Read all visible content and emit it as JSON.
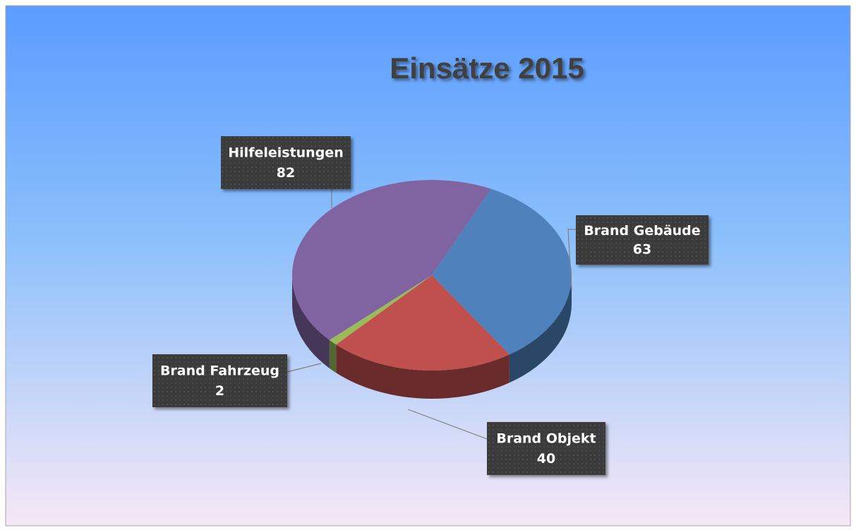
{
  "chart_data": {
    "type": "pie",
    "title": "Einsätze 2015",
    "categories": [
      "Brand Gebäude",
      "Brand Objekt",
      "Brand Fahrzeug",
      "Hilfeleistungen"
    ],
    "values": [
      63,
      40,
      2,
      82
    ],
    "colors": [
      "#4f81bd",
      "#c0504d",
      "#9bbb59",
      "#8064a2"
    ]
  }
}
